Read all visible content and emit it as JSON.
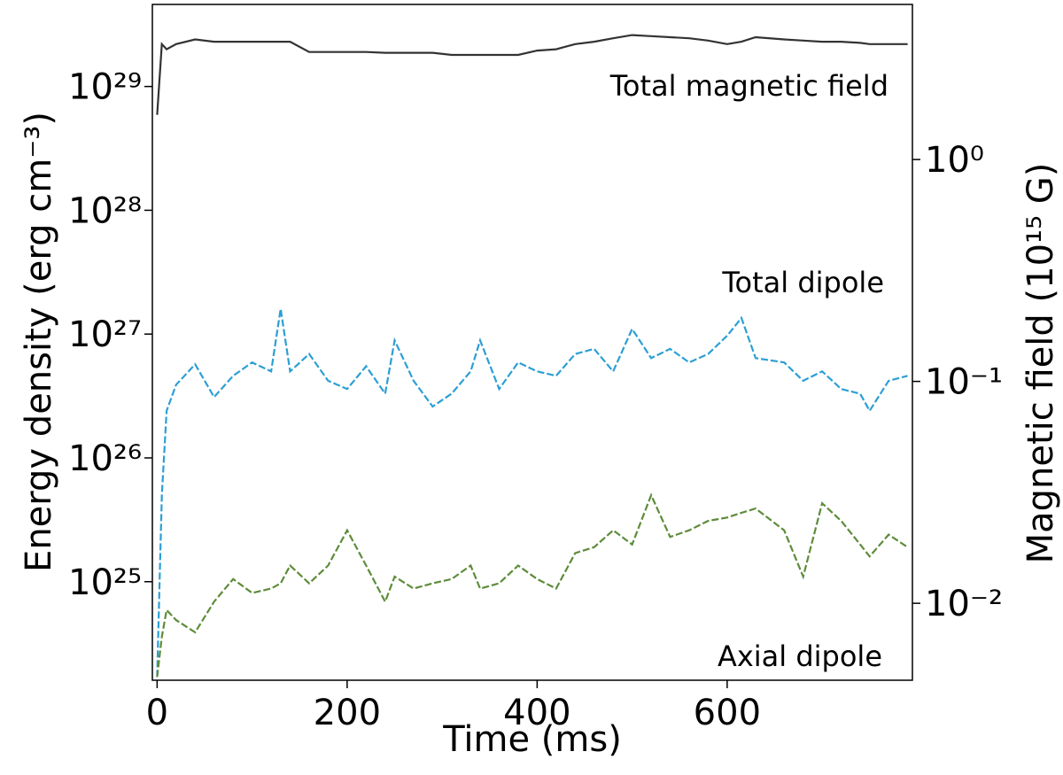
{
  "chart_data": {
    "type": "line",
    "xlabel": "Time (ms)",
    "ylabel": "Energy density (erg cm⁻³)",
    "y2label": "Magnetic field (10¹⁵ G)",
    "yscale": "log",
    "y2scale": "log",
    "grid": false,
    "xlim": [
      -5,
      795
    ],
    "ylim": [
      1.6e+24,
      4.6e+29
    ],
    "y2lim": [
      0.0045,
      5.0
    ],
    "xticks": [
      0,
      200,
      400,
      600
    ],
    "yticks": [
      {
        "value": 1e+25,
        "label": "10²⁵"
      },
      {
        "value": 1e+26,
        "label": "10²⁶"
      },
      {
        "value": 1e+27,
        "label": "10²⁷"
      },
      {
        "value": 1e+28,
        "label": "10²⁸"
      },
      {
        "value": 1e+29,
        "label": "10²⁹"
      }
    ],
    "y2ticks": [
      {
        "value": 0.01,
        "label": "10⁻²"
      },
      {
        "value": 0.1,
        "label": "10⁻¹"
      },
      {
        "value": 1,
        "label": "10⁰"
      }
    ],
    "x": [
      0,
      5,
      10,
      20,
      40,
      60,
      80,
      100,
      120,
      130,
      140,
      160,
      180,
      200,
      220,
      240,
      250,
      270,
      290,
      310,
      330,
      340,
      360,
      380,
      400,
      420,
      440,
      460,
      480,
      500,
      520,
      540,
      560,
      580,
      600,
      615,
      630,
      660,
      680,
      700,
      720,
      740,
      750,
      770,
      790
    ],
    "series": [
      {
        "name": "Total magnetic field",
        "color": "#333333",
        "linestyle": "solid",
        "values": [
          5.9e+28,
          2.2e+29,
          2e+29,
          2.2e+29,
          2.4e+29,
          2.3e+29,
          2.3e+29,
          2.3e+29,
          2.3e+29,
          2.3e+29,
          2.3e+29,
          1.9e+29,
          1.9e+29,
          1.9e+29,
          1.9e+29,
          1.87e+29,
          1.87e+29,
          1.87e+29,
          1.87e+29,
          1.8e+29,
          1.8e+29,
          1.8e+29,
          1.8e+29,
          1.8e+29,
          1.95e+29,
          2e+29,
          2.2e+29,
          2.3e+29,
          2.45e+29,
          2.6e+29,
          2.55e+29,
          2.5e+29,
          2.45e+29,
          2.35e+29,
          2.2e+29,
          2.3e+29,
          2.5e+29,
          2.4e+29,
          2.35e+29,
          2.3e+29,
          2.3e+29,
          2.25e+29,
          2.2e+29,
          2.2e+29,
          2.2e+29
        ]
      },
      {
        "name": "Total dipole",
        "color": "#2c9fd4",
        "linestyle": "dashed",
        "values": [
          1.7e+24,
          5e+25,
          2.4e+26,
          3.9e+26,
          5.7e+26,
          3.1e+26,
          4.6e+26,
          5.9e+26,
          5e+26,
          1.6e+27,
          5e+26,
          6.9e+26,
          4.2e+26,
          3.6e+26,
          5.5e+26,
          3.3e+26,
          8.9e+26,
          4.2e+26,
          2.6e+26,
          3.3e+26,
          5e+26,
          8.9e+26,
          3.6e+26,
          5.9e+26,
          5e+26,
          4.6e+26,
          6.9e+26,
          7.6e+26,
          5e+26,
          1.1e+27,
          6.4e+26,
          7.6e+26,
          5.9e+26,
          6.9e+26,
          9.7e+26,
          1.35e+27,
          6.4e+26,
          5.9e+26,
          4.2e+26,
          5e+26,
          3.6e+26,
          3.3e+26,
          2.4e+26,
          4.2e+26,
          4.6e+26
        ]
      },
      {
        "name": "Axial dipole",
        "color": "#5e8c3a",
        "linestyle": "dashed",
        "values": [
          1.7e+24,
          3.6e+24,
          5.9e+24,
          4.9e+24,
          3.9e+24,
          6.9e+24,
          1.05e+25,
          8.1e+24,
          8.8e+24,
          9.7e+24,
          1.35e+25,
          9.7e+24,
          1.35e+25,
          2.6e+25,
          1.35e+25,
          6.9e+24,
          1.1e+25,
          8.8e+24,
          9.7e+24,
          1.05e+25,
          1.35e+25,
          8.8e+24,
          9.7e+24,
          1.35e+25,
          1.05e+25,
          8.8e+24,
          1.7e+25,
          1.9e+25,
          2.6e+25,
          2e+25,
          5e+25,
          2.3e+25,
          2.6e+25,
          3.1e+25,
          3.3e+25,
          3.6e+25,
          3.9e+25,
          2.6e+25,
          1.1e+25,
          4.3e+25,
          3.1e+25,
          2e+25,
          1.6e+25,
          2.4e+25,
          1.9e+25
        ]
      }
    ],
    "annotations": [
      "Total magnetic field",
      "Total dipole",
      "Axial dipole"
    ]
  }
}
